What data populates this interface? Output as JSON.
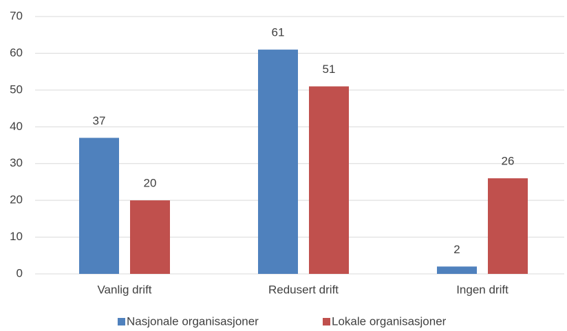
{
  "chart_data": {
    "type": "bar",
    "categories": [
      "Vanlig drift",
      "Redusert drift",
      "Ingen drift"
    ],
    "series": [
      {
        "name": "Nasjonale organisasjoner",
        "color": "#4f81bd",
        "values": [
          37,
          61,
          2
        ]
      },
      {
        "name": "Lokale organisasjoner",
        "color": "#c0504d",
        "values": [
          20,
          51,
          26
        ]
      }
    ],
    "ylim": [
      0,
      70
    ],
    "yticks": [
      0,
      10,
      20,
      30,
      40,
      50,
      60,
      70
    ],
    "grid": true,
    "legend": "bottom"
  }
}
